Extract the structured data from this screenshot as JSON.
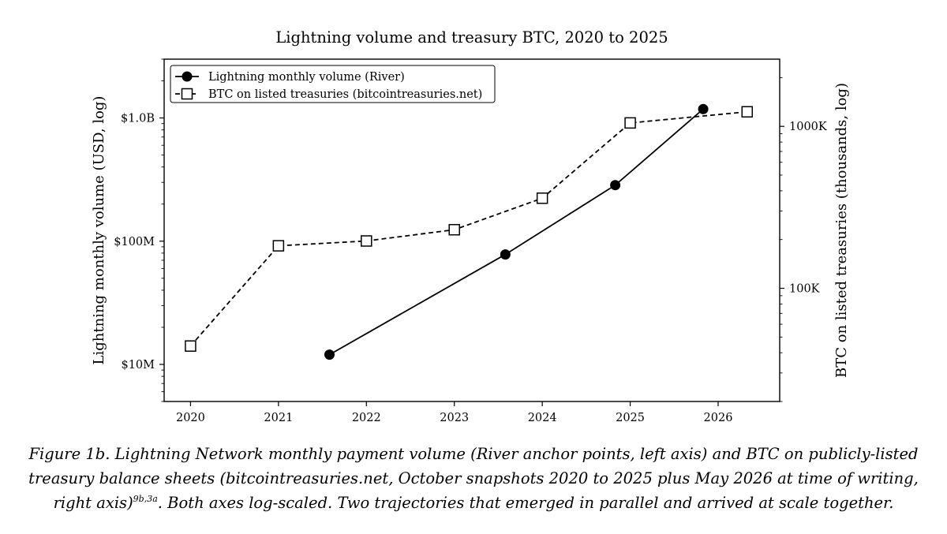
{
  "chart_data": {
    "type": "line",
    "title": "Lightning volume and treasury BTC, 2020 to 2025",
    "xlabel": "",
    "ylabel": "Lightning monthly volume (USD, log)",
    "y2label": "BTC on listed treasuries (thousands, log)",
    "x_ticks": [
      "2020",
      "2021",
      "2022",
      "2023",
      "2024",
      "2025",
      "2026"
    ],
    "xlim": [
      2019.7,
      2026.7
    ],
    "y_scale": "log",
    "ylim": [
      5000000,
      3000000000
    ],
    "y_ticks": [
      {
        "value": 10000000,
        "label": "$10M"
      },
      {
        "value": 100000000,
        "label": "$100M"
      },
      {
        "value": 1000000000,
        "label": "$1.0B"
      }
    ],
    "y2_scale": "log",
    "y2lim": [
      20,
      2600
    ],
    "y2_ticks": [
      {
        "value": 100,
        "label": "100K"
      },
      {
        "value": 1000,
        "label": "1000K"
      }
    ],
    "grid": false,
    "legend_position": "top-left",
    "series": [
      {
        "name": "Lightning monthly volume (River)",
        "axis": "left",
        "color": "#000000",
        "marker": "filled-circle",
        "line_style": "solid",
        "x": [
          2021.58,
          2023.58,
          2024.83,
          2025.83
        ],
        "y": [
          12000000,
          78000000,
          285000000,
          1180000000
        ]
      },
      {
        "name": "BTC on listed treasuries (bitcointreasuries.net)",
        "axis": "right",
        "color": "#000000",
        "marker": "hollow-square",
        "line_style": "dashed",
        "x": [
          2020.0,
          2021.0,
          2022.0,
          2023.0,
          2024.0,
          2025.0,
          2026.33
        ],
        "y": [
          44,
          183,
          196,
          230,
          360,
          1050,
          1230
        ]
      }
    ]
  },
  "caption": {
    "main": "Figure 1b. Lightning Network monthly payment volume (River anchor points, left axis) and BTC on publicly-listed treasury balance sheets (bitcointreasuries.net, October snapshots 2020 to 2025 plus May 2026 at time of writing, right axis)",
    "refs": "9b,3a",
    "tail": ". Both axes log-scaled. Two trajectories that emerged in parallel and arrived at scale together."
  }
}
